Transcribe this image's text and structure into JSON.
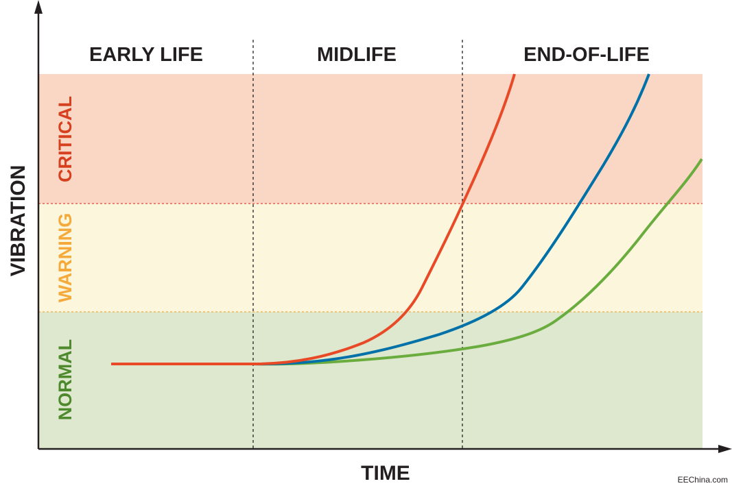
{
  "phases": {
    "early": "EARLY LIFE",
    "mid": "MIDLIFE",
    "end": "END-OF-LIFE"
  },
  "zones": {
    "critical": {
      "label": "CRITICAL",
      "fill": "#fad6c4",
      "text_color": "#d7401e",
      "border_color": "#e8473a"
    },
    "warning": {
      "label": "WARNING",
      "fill": "#fbf6dc",
      "text_color": "#f5a93b",
      "border_color": "#f5a93b"
    },
    "normal": {
      "label": "NORMAL",
      "fill": "#dde8ce",
      "text_color": "#4e8a2d"
    }
  },
  "axes": {
    "x_title": "TIME",
    "y_title": "VIBRATION"
  },
  "curves": [
    {
      "id": "red",
      "color": "#e84a27"
    },
    {
      "id": "blue",
      "color": "#0071a8"
    },
    {
      "id": "green",
      "color": "#6aac3e"
    }
  ],
  "credit": "EEChina.com"
}
